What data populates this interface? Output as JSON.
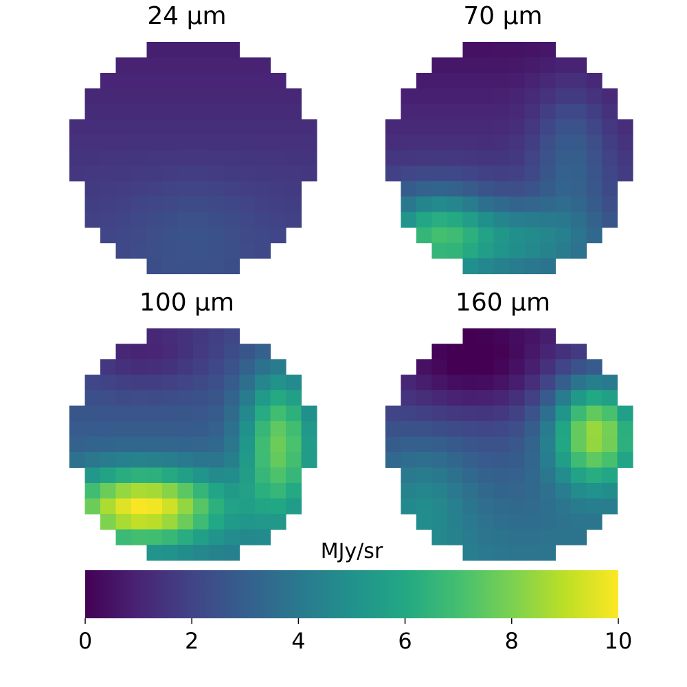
{
  "chart_data": [
    {
      "type": "heatmap",
      "title": "24 μm",
      "grid_size": [
        16,
        16
      ],
      "pattern": "uniform-low",
      "approx_value_range": [
        0.1,
        2.8
      ]
    },
    {
      "type": "heatmap",
      "title": "70 μm",
      "grid_size": [
        16,
        16
      ],
      "pattern": "low-top-high-lower-left",
      "approx_value_range": [
        0.0,
        7.5
      ]
    },
    {
      "type": "heatmap",
      "title": "100 μm",
      "grid_size": [
        16,
        16
      ],
      "pattern": "high-lower-left-and-right-arc",
      "approx_value_range": [
        0.8,
        10.0
      ]
    },
    {
      "type": "heatmap",
      "title": "160 μm",
      "grid_size": [
        16,
        16
      ],
      "pattern": "low-top-high-right",
      "approx_value_range": [
        0.2,
        8.8
      ]
    }
  ],
  "colorbar": {
    "label": "MJy/sr",
    "colormap": "viridis",
    "range": [
      0,
      10
    ],
    "ticks": [
      "0",
      "2",
      "4",
      "6",
      "8",
      "10"
    ],
    "orientation": "horizontal"
  }
}
